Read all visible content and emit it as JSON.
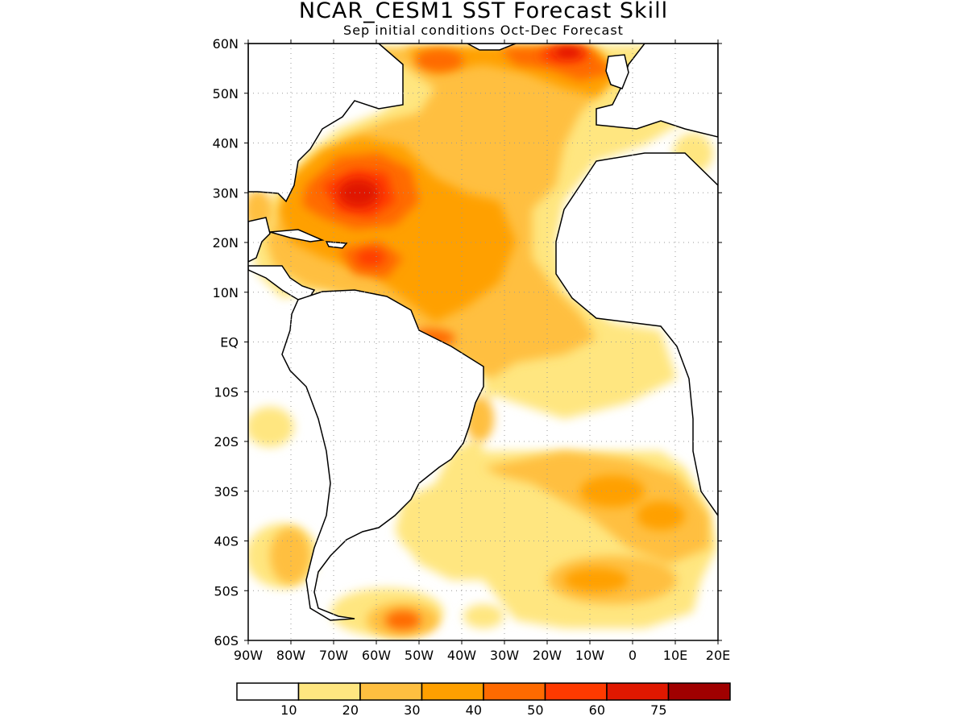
{
  "header": {
    "title": "NCAR_CESM1 SST Forecast Skill",
    "subtitle": "Sep initial conditions  Oct-Dec Forecast"
  },
  "map": {
    "lat_labels": [
      "60N",
      "50N",
      "40N",
      "30N",
      "20N",
      "10N",
      "EQ",
      "10S",
      "20S",
      "30S",
      "40S",
      "50S",
      "60S"
    ],
    "lon_labels": [
      "90W",
      "80W",
      "70W",
      "60W",
      "50W",
      "40W",
      "30W",
      "20W",
      "10W",
      "0",
      "10E",
      "20E"
    ],
    "lat_range": [
      -60,
      60
    ],
    "lon_range": [
      -90,
      20
    ],
    "grid": "dotted",
    "land_color": "#ffffff"
  },
  "colorbar": {
    "colors": [
      "#ffffff",
      "#ffe680",
      "#ffbf40",
      "#ffa000",
      "#ff6a00",
      "#ff3a00",
      "#e01800",
      "#a00000"
    ],
    "labels": [
      "10",
      "20",
      "30",
      "40",
      "50",
      "60",
      "75"
    ]
  }
}
